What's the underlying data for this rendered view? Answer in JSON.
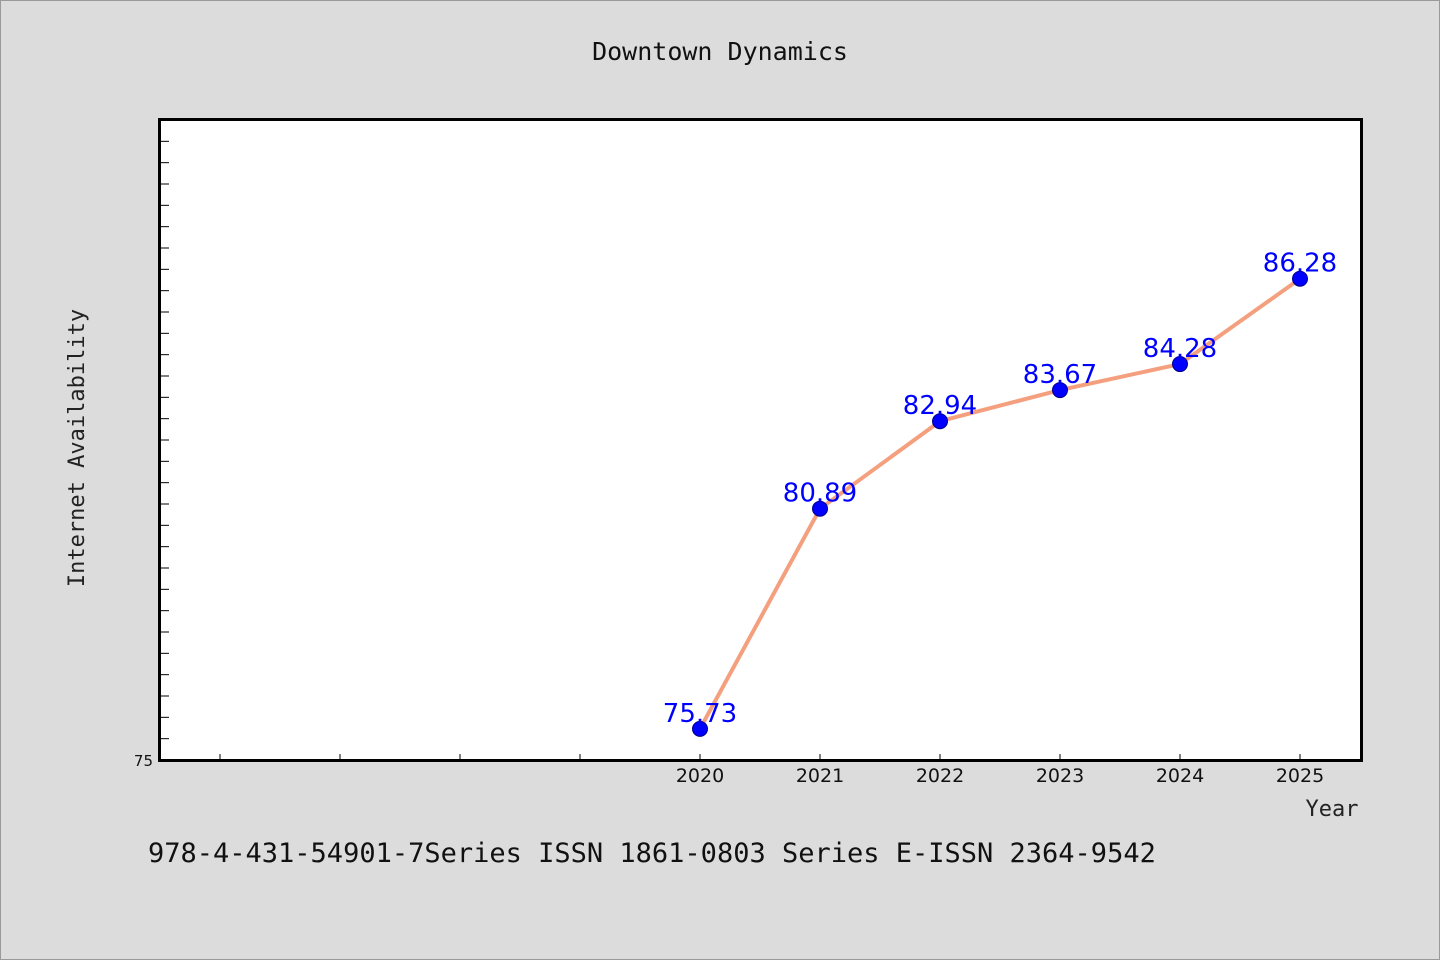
{
  "chart_data": {
    "type": "line",
    "title": "Downtown Dynamics",
    "xlabel": "Year",
    "ylabel": "Internet Availability",
    "x": [
      "2020",
      "2021",
      "2022",
      "2023",
      "2024",
      "2025"
    ],
    "y": [
      75.73,
      80.89,
      82.94,
      83.67,
      84.28,
      86.28
    ],
    "labels": [
      "75.73",
      "80.89",
      "82.94",
      "83.67",
      "84.28",
      "86.28"
    ],
    "ylim": [
      75,
      90
    ],
    "ytick_labels": [
      "75"
    ],
    "grid": false,
    "line_color": "#f4a07e",
    "marker_color": "#0000ff"
  },
  "footer": {
    "text": "978-4-431-54901-7Series ISSN 1861-0803 Series E-ISSN 2364-9542"
  }
}
